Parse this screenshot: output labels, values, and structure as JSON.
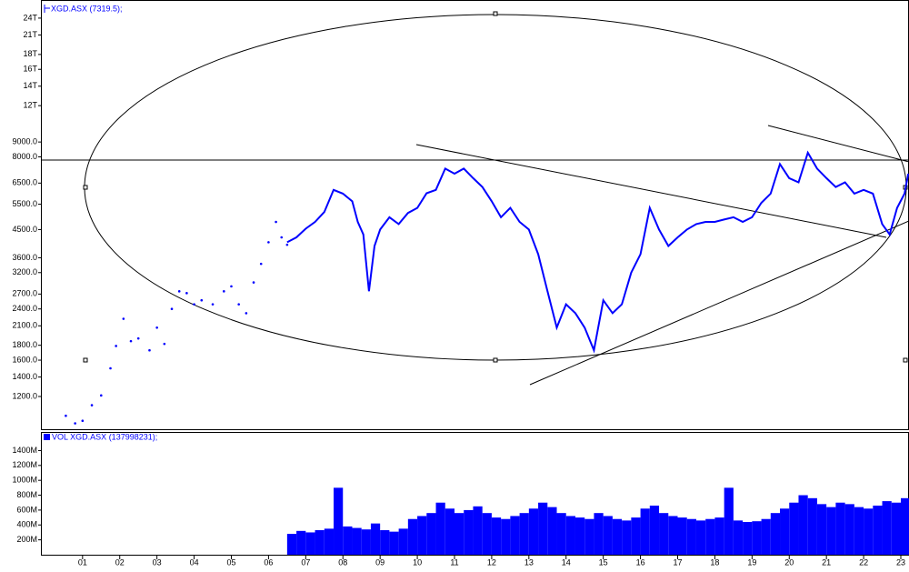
{
  "chart_data": [
    {
      "type": "line",
      "log_scale": true,
      "xlim": [
        1999.88,
        2023.22
      ],
      "ylim": [
        926,
        27700
      ],
      "yticks": [
        {
          "value": 24000,
          "label": "24T"
        },
        {
          "value": 21000,
          "label": "21T"
        },
        {
          "value": 18000,
          "label": "18T"
        },
        {
          "value": 16000,
          "label": "16T"
        },
        {
          "value": 14000,
          "label": "14T"
        },
        {
          "value": 12000,
          "label": "12T"
        },
        {
          "value": 9000,
          "label": "9000.0"
        },
        {
          "value": 8000,
          "label": "8000.0"
        },
        {
          "value": 6500,
          "label": "6500.0"
        },
        {
          "value": 5500,
          "label": "5500.0"
        },
        {
          "value": 4500,
          "label": "4500.0"
        },
        {
          "value": 3600,
          "label": "3600.0"
        },
        {
          "value": 3200,
          "label": "3200.0"
        },
        {
          "value": 2700,
          "label": "2700.0"
        },
        {
          "value": 2400,
          "label": "2400.0"
        },
        {
          "value": 2100,
          "label": "2100.0"
        },
        {
          "value": 1800,
          "label": "1800.0"
        },
        {
          "value": 1600,
          "label": "1600.0"
        },
        {
          "value": 1400,
          "label": "1400.0"
        },
        {
          "value": 1200,
          "label": "1200.0"
        }
      ],
      "series": [
        {
          "name": "XGD.ASX (7319.5);",
          "color": "#0000ff",
          "style": "line",
          "x": [
            2006.5,
            2006.75,
            2007.0,
            2007.25,
            2007.5,
            2007.75,
            2008.0,
            2008.25,
            2008.4,
            2008.55,
            2008.7,
            2008.85,
            2009.0,
            2009.25,
            2009.5,
            2009.75,
            2010.0,
            2010.25,
            2010.5,
            2010.75,
            2011.0,
            2011.25,
            2011.5,
            2011.75,
            2012.0,
            2012.25,
            2012.5,
            2012.75,
            2013.0,
            2013.25,
            2013.5,
            2013.75,
            2014.0,
            2014.25,
            2014.5,
            2014.75,
            2015.0,
            2015.25,
            2015.5,
            2015.75,
            2016.0,
            2016.25,
            2016.5,
            2016.75,
            2017.0,
            2017.25,
            2017.5,
            2017.75,
            2018.0,
            2018.25,
            2018.5,
            2018.75,
            2019.0,
            2019.25,
            2019.5,
            2019.75,
            2020.0,
            2020.25,
            2020.5,
            2020.75,
            2021.0,
            2021.25,
            2021.5,
            2021.75,
            2022.0,
            2022.25,
            2022.5,
            2022.7,
            2022.9,
            2023.1,
            2023.2
          ],
          "values": [
            4070,
            4230,
            4530,
            4780,
            5170,
            6160,
            5980,
            5630,
            4780,
            4330,
            2760,
            3950,
            4500,
            4960,
            4700,
            5130,
            5340,
            6000,
            6160,
            7290,
            7000,
            7290,
            6760,
            6300,
            5630,
            4960,
            5340,
            4780,
            4500,
            3700,
            2760,
            2070,
            2490,
            2320,
            2070,
            1730,
            2570,
            2320,
            2490,
            3200,
            3700,
            5340,
            4500,
            3950,
            4230,
            4500,
            4700,
            4780,
            4780,
            4870,
            4960,
            4780,
            4960,
            5560,
            5980,
            7560,
            6760,
            6540,
            8270,
            7290,
            6760,
            6300,
            6540,
            5980,
            6160,
            5980,
            4700,
            4330,
            5340,
            5980,
            7000
          ]
        },
        {
          "color": "#0000ff",
          "style": "dots",
          "x": [
            2000.55,
            2000.8,
            2001.0,
            2001.25,
            2001.5,
            2001.75,
            2001.9,
            2002.1,
            2002.3,
            2002.5,
            2002.8,
            2003.0,
            2003.2,
            2003.4,
            2003.6,
            2003.8,
            2004.0,
            2004.2,
            2004.5,
            2004.8,
            2005.0,
            2005.2,
            2005.4,
            2005.6,
            2005.8,
            2006.0,
            2006.2,
            2006.35,
            2006.5
          ],
          "values": [
            1030,
            970,
            990,
            1120,
            1210,
            1500,
            1790,
            2220,
            1860,
            1900,
            1730,
            2070,
            1820,
            2400,
            2760,
            2720,
            2490,
            2570,
            2490,
            2760,
            2870,
            2490,
            2320,
            2960,
            3430,
            4070,
            4780,
            4230,
            3990
          ]
        }
      ]
    },
    {
      "type": "bar",
      "xlim": [
        1999.88,
        2023.22
      ],
      "ylim": [
        0,
        1650000000
      ],
      "yticks": [
        {
          "value": 1400000000,
          "label": "1400M"
        },
        {
          "value": 1200000000,
          "label": "1200M"
        },
        {
          "value": 1000000000,
          "label": "1000M"
        },
        {
          "value": 800000000,
          "label": "800M"
        },
        {
          "value": 600000000,
          "label": "600M"
        },
        {
          "value": 400000000,
          "label": "400M"
        },
        {
          "value": 200000000,
          "label": "200M"
        }
      ],
      "xticks": [
        {
          "value": 2001,
          "label": "01"
        },
        {
          "value": 2002,
          "label": "02"
        },
        {
          "value": 2003,
          "label": "03"
        },
        {
          "value": 2004,
          "label": "04"
        },
        {
          "value": 2005,
          "label": "05"
        },
        {
          "value": 2006,
          "label": "06"
        },
        {
          "value": 2007,
          "label": "07"
        },
        {
          "value": 2008,
          "label": "08"
        },
        {
          "value": 2009,
          "label": "09"
        },
        {
          "value": 2010,
          "label": "10"
        },
        {
          "value": 2011,
          "label": "11"
        },
        {
          "value": 2012,
          "label": "12"
        },
        {
          "value": 2013,
          "label": "13"
        },
        {
          "value": 2014,
          "label": "14"
        },
        {
          "value": 2015,
          "label": "15"
        },
        {
          "value": 2016,
          "label": "16"
        },
        {
          "value": 2017,
          "label": "17"
        },
        {
          "value": 2018,
          "label": "18"
        },
        {
          "value": 2019,
          "label": "19"
        },
        {
          "value": 2020,
          "label": "20"
        },
        {
          "value": 2021,
          "label": "21"
        },
        {
          "value": 2022,
          "label": "22"
        },
        {
          "value": 2023,
          "label": "23"
        }
      ],
      "series": [
        {
          "name": "VOL XGD.ASX (137998231);",
          "color": "#0000ff",
          "x": [
            2006.5,
            2006.75,
            2007.0,
            2007.25,
            2007.5,
            2007.75,
            2008.0,
            2008.25,
            2008.5,
            2008.75,
            2009.0,
            2009.25,
            2009.5,
            2009.75,
            2010.0,
            2010.25,
            2010.5,
            2010.75,
            2011.0,
            2011.25,
            2011.5,
            2011.75,
            2012.0,
            2012.25,
            2012.5,
            2012.75,
            2013.0,
            2013.25,
            2013.5,
            2013.75,
            2014.0,
            2014.25,
            2014.5,
            2014.75,
            2015.0,
            2015.25,
            2015.5,
            2015.75,
            2016.0,
            2016.25,
            2016.5,
            2016.75,
            2017.0,
            2017.25,
            2017.5,
            2017.75,
            2018.0,
            2018.25,
            2018.5,
            2018.75,
            2019.0,
            2019.25,
            2019.5,
            2019.75,
            2020.0,
            2020.25,
            2020.5,
            2020.75,
            2021.0,
            2021.25,
            2021.5,
            2021.75,
            2022.0,
            2022.25,
            2022.5,
            2022.75,
            2023.0
          ],
          "values": [
            280000000,
            320000000,
            300000000,
            330000000,
            350000000,
            900000000,
            380000000,
            360000000,
            340000000,
            420000000,
            330000000,
            310000000,
            350000000,
            480000000,
            520000000,
            560000000,
            700000000,
            620000000,
            560000000,
            600000000,
            650000000,
            560000000,
            500000000,
            480000000,
            520000000,
            560000000,
            620000000,
            700000000,
            640000000,
            560000000,
            520000000,
            500000000,
            480000000,
            560000000,
            520000000,
            480000000,
            460000000,
            500000000,
            620000000,
            660000000,
            560000000,
            520000000,
            500000000,
            480000000,
            460000000,
            480000000,
            500000000,
            900000000,
            460000000,
            440000000,
            450000000,
            480000000,
            560000000,
            620000000,
            700000000,
            800000000,
            760000000,
            680000000,
            640000000,
            700000000,
            680000000,
            640000000,
            620000000,
            660000000,
            720000000,
            700000000,
            760000000
          ]
        }
      ]
    }
  ]
}
